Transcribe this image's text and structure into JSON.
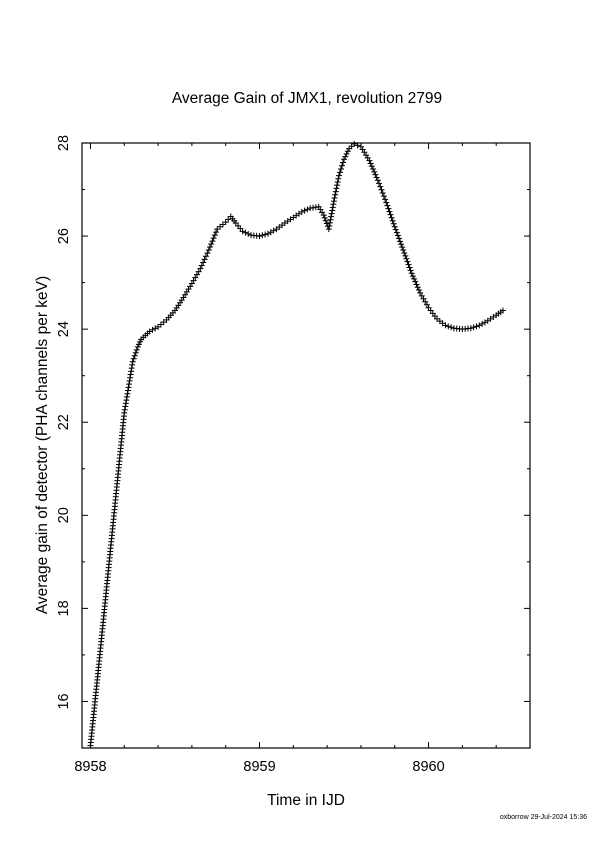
{
  "chart_data": {
    "type": "scatter",
    "title": "Average Gain of JMX1, revolution 2799",
    "xlabel": "Time in IJD",
    "ylabel": "Average gain of detector (PHA channels per keV)",
    "xlim": [
      8957.95,
      8960.6
    ],
    "ylim": [
      15.0,
      28.0
    ],
    "x_ticks": [
      8958,
      8959,
      8960
    ],
    "x_tick_labels": [
      "8958",
      "8959",
      "8960"
    ],
    "y_ticks": [
      16,
      18,
      20,
      22,
      24,
      26,
      28
    ],
    "y_tick_labels": [
      "16",
      "18",
      "20",
      "22",
      "24",
      "26",
      "28"
    ],
    "marker": "+",
    "grid": false,
    "legend": "none",
    "x": [
      8958.0,
      8958.05,
      8958.1,
      8958.15,
      8958.2,
      8958.25,
      8958.28,
      8958.3,
      8958.35,
      8958.4,
      8958.45,
      8958.5,
      8958.55,
      8958.6,
      8958.65,
      8958.7,
      8958.75,
      8958.8,
      8958.83,
      8958.86,
      8958.9,
      8958.95,
      8959.0,
      8959.05,
      8959.1,
      8959.15,
      8959.2,
      8959.25,
      8959.3,
      8959.35,
      8959.38,
      8959.41,
      8959.44,
      8959.47,
      8959.5,
      8959.53,
      8959.56,
      8959.6,
      8959.65,
      8959.7,
      8959.75,
      8959.8,
      8959.85,
      8959.9,
      8959.95,
      8960.0,
      8960.05,
      8960.1,
      8960.15,
      8960.2,
      8960.25,
      8960.3,
      8960.35,
      8960.4,
      8960.44
    ],
    "y": [
      15.05,
      16.8,
      18.6,
      20.4,
      22.2,
      23.3,
      23.62,
      23.78,
      23.95,
      24.05,
      24.2,
      24.4,
      24.68,
      24.98,
      25.3,
      25.7,
      26.15,
      26.3,
      26.42,
      26.28,
      26.1,
      26.02,
      26.0,
      26.05,
      26.15,
      26.28,
      26.4,
      26.52,
      26.6,
      26.63,
      26.45,
      26.15,
      26.75,
      27.3,
      27.65,
      27.88,
      27.98,
      27.92,
      27.62,
      27.2,
      26.72,
      26.2,
      25.7,
      25.2,
      24.78,
      24.46,
      24.22,
      24.08,
      24.02,
      24.0,
      24.02,
      24.08,
      24.18,
      24.3,
      24.4
    ]
  },
  "footer": "oxborrow 29-Jul-2024 15:36"
}
